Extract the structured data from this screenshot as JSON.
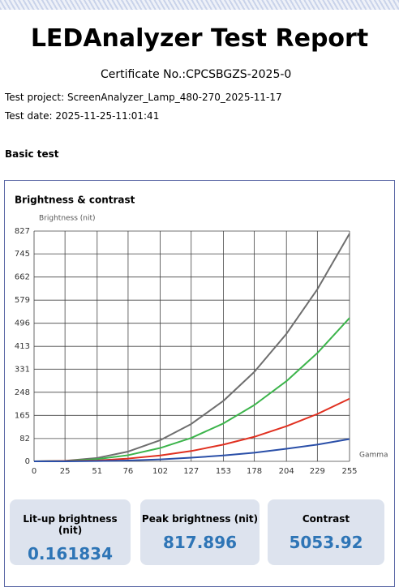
{
  "report": {
    "title": "LEDAnalyzer Test Report",
    "certificate": "Certificate No.:CPCSBGZS-2025-0",
    "project": "Test project: ScreenAnalyzer_Lamp_480-270_2025-11-17",
    "date": "Test date: 2025-11-25-11:01:41",
    "section": "Basic test"
  },
  "chart_data": {
    "type": "line",
    "title": "Brightness & contrast",
    "y_label": "Brightness (nit)",
    "x_label": "Gamma",
    "x": [
      0,
      25,
      51,
      76,
      102,
      127,
      153,
      178,
      204,
      229,
      255
    ],
    "series": [
      {
        "color": "#6e6e6e",
        "values": [
          0,
          2,
          12,
          35,
          76,
          134,
          217,
          321,
          458,
          618,
          818
        ]
      },
      {
        "color": "#3cb44b",
        "values": [
          0,
          1,
          8,
          22,
          48,
          84,
          136,
          202,
          288,
          389,
          515
        ]
      },
      {
        "color": "#e03020",
        "values": [
          0,
          1,
          3,
          10,
          21,
          37,
          60,
          88,
          126,
          170,
          225
        ]
      },
      {
        "color": "#2a4fa8",
        "values": [
          0,
          0,
          1,
          3,
          7,
          13,
          21,
          31,
          45,
          60,
          80
        ]
      }
    ],
    "xlim": [
      0,
      255
    ],
    "ylim": [
      0,
      827
    ],
    "xticks": [
      0,
      25,
      51,
      76,
      102,
      127,
      153,
      178,
      204,
      229,
      255
    ],
    "yticks": [
      0,
      82,
      165,
      248,
      331,
      413,
      496,
      579,
      662,
      745,
      827
    ],
    "grid": true
  },
  "metrics": [
    {
      "label": "Lit-up brightness (nit)",
      "value": 0.161834
    },
    {
      "label": "Peak brightness (nit)",
      "value": 817.896
    },
    {
      "label": "Contrast",
      "value": 5053.92
    }
  ]
}
